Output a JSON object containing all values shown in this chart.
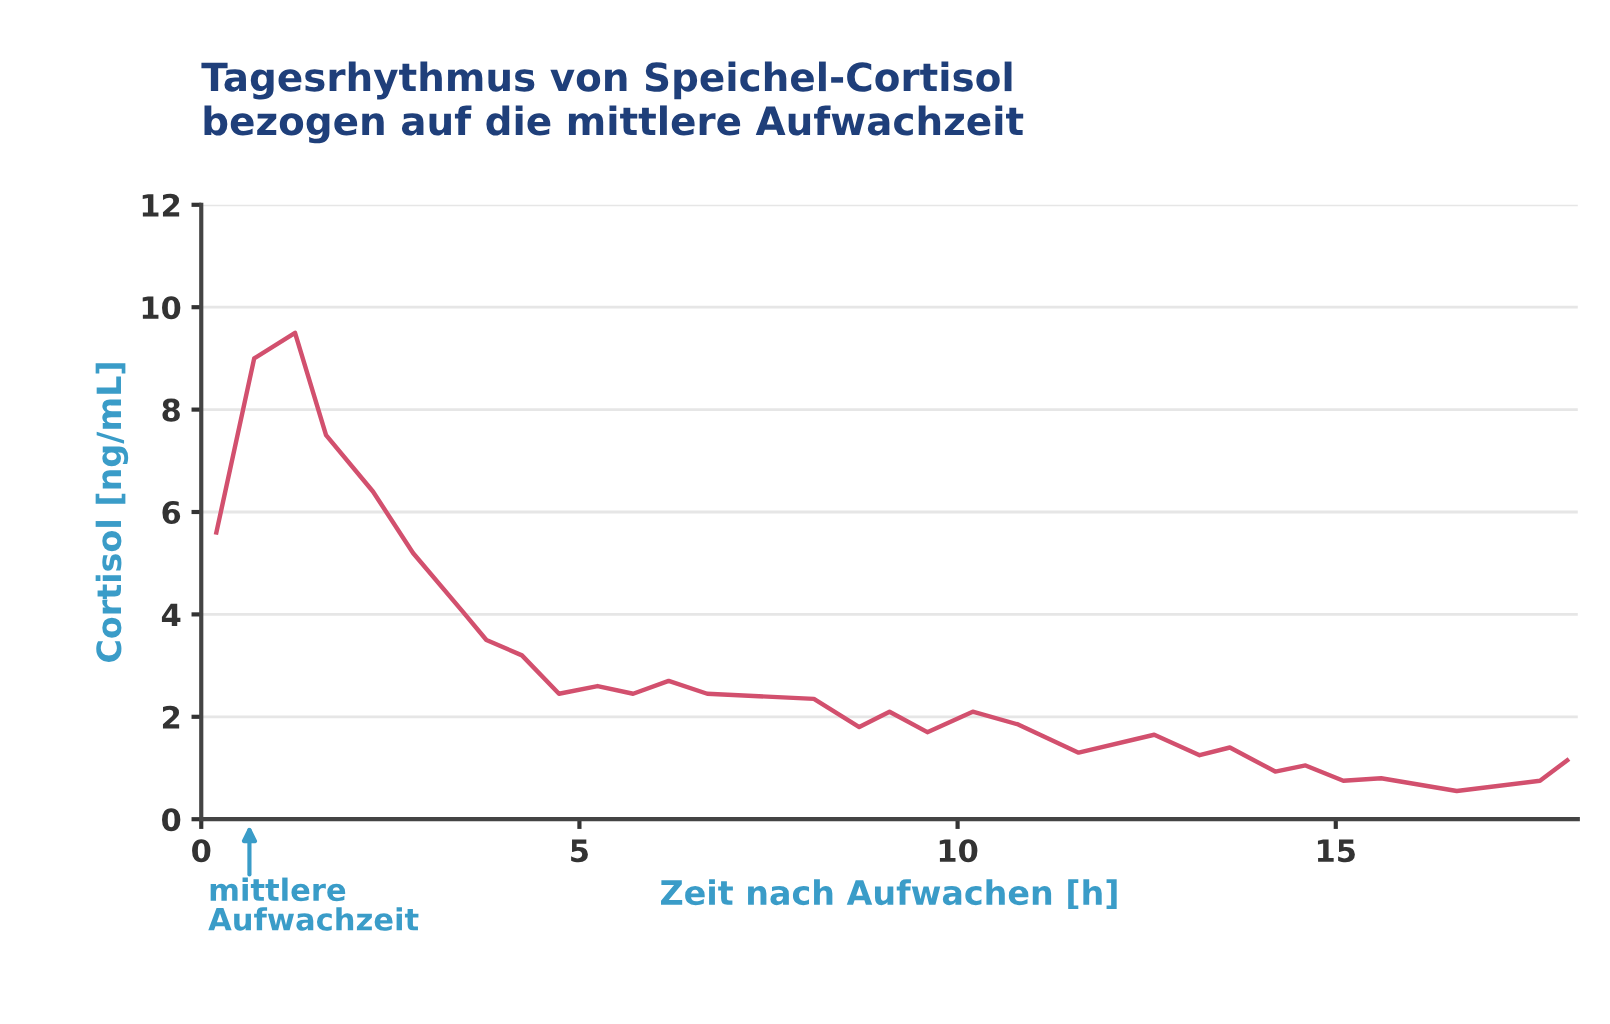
{
  "chart_data": {
    "type": "line",
    "title": "Tagesrhythmus von Speichel-Cortisol\nbezogen auf die mittlere Aufwachzeit",
    "xlabel": "Zeit nach Aufwachen [h]",
    "ylabel": "Cortisol [ng/mL]",
    "annotations": [
      "mittlere\nAufwachzeit"
    ],
    "series": [
      {
        "color": "#d2506e",
        "x": [
          0.2,
          0.7,
          1.24,
          1.65,
          2.27,
          2.8,
          3.46,
          3.77,
          4.24,
          4.73,
          5.24,
          5.71,
          6.18,
          6.69,
          8.1,
          8.7,
          9.1,
          9.6,
          10.2,
          10.8,
          11.6,
          12.6,
          13.2,
          13.6,
          14.2,
          14.6,
          15.1,
          15.6,
          16.6,
          17.7,
          18.06
        ],
        "values": [
          5.6,
          9.0,
          9.5,
          7.5,
          6.4,
          5.2,
          4.05,
          3.5,
          3.2,
          2.45,
          2.6,
          2.45,
          2.7,
          2.45,
          2.35,
          1.8,
          2.1,
          1.7,
          2.1,
          1.85,
          1.3,
          1.65,
          1.25,
          1.4,
          0.93,
          1.05,
          0.75,
          0.8,
          0.55,
          0.75,
          1.15
        ]
      }
    ],
    "xlim": [
      0,
      18.2
    ],
    "ylim": [
      0,
      12
    ],
    "xticks": [
      0,
      5,
      10,
      15
    ],
    "yticks": [
      0,
      2,
      4,
      6,
      8,
      10,
      12
    ],
    "grid": "y",
    "legend": false,
    "marker": "none",
    "line_style": "solid"
  }
}
